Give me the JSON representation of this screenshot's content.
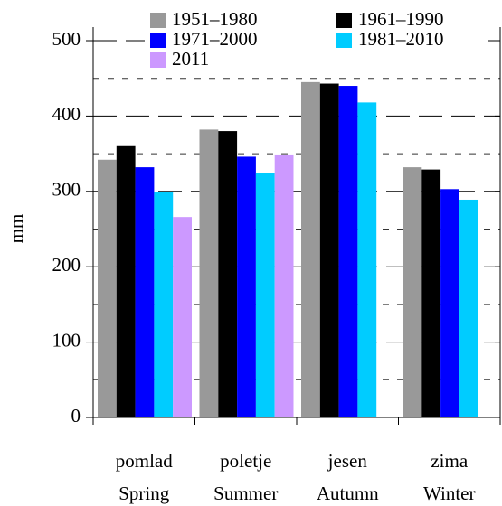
{
  "chart_data": {
    "type": "bar",
    "y_label": "mm",
    "categories": [
      [
        "pomlad",
        "Spring"
      ],
      [
        "poletje",
        "Summer"
      ],
      [
        "jesen",
        "Autumn"
      ],
      [
        "zima",
        "Winter"
      ]
    ],
    "series": [
      {
        "name": "1951–1980",
        "color": "#999999",
        "values": [
          342,
          382,
          445,
          332
        ]
      },
      {
        "name": "1961–1990",
        "color": "#000000",
        "values": [
          360,
          380,
          443,
          329
        ]
      },
      {
        "name": "1971–2000",
        "color": "#0000ff",
        "values": [
          332,
          346,
          440,
          303
        ]
      },
      {
        "name": "1981–2010",
        "color": "#00ccff",
        "values": [
          299,
          324,
          418,
          289
        ]
      },
      {
        "name": "2011",
        "color": "#cc99ff",
        "values": [
          266,
          349,
          null,
          null
        ]
      }
    ],
    "ylim": [
      0,
      500
    ],
    "yticks": [
      0,
      100,
      200,
      300,
      400,
      500
    ],
    "minor_yticks": [
      50,
      150,
      250,
      350,
      450
    ],
    "grid": true
  }
}
